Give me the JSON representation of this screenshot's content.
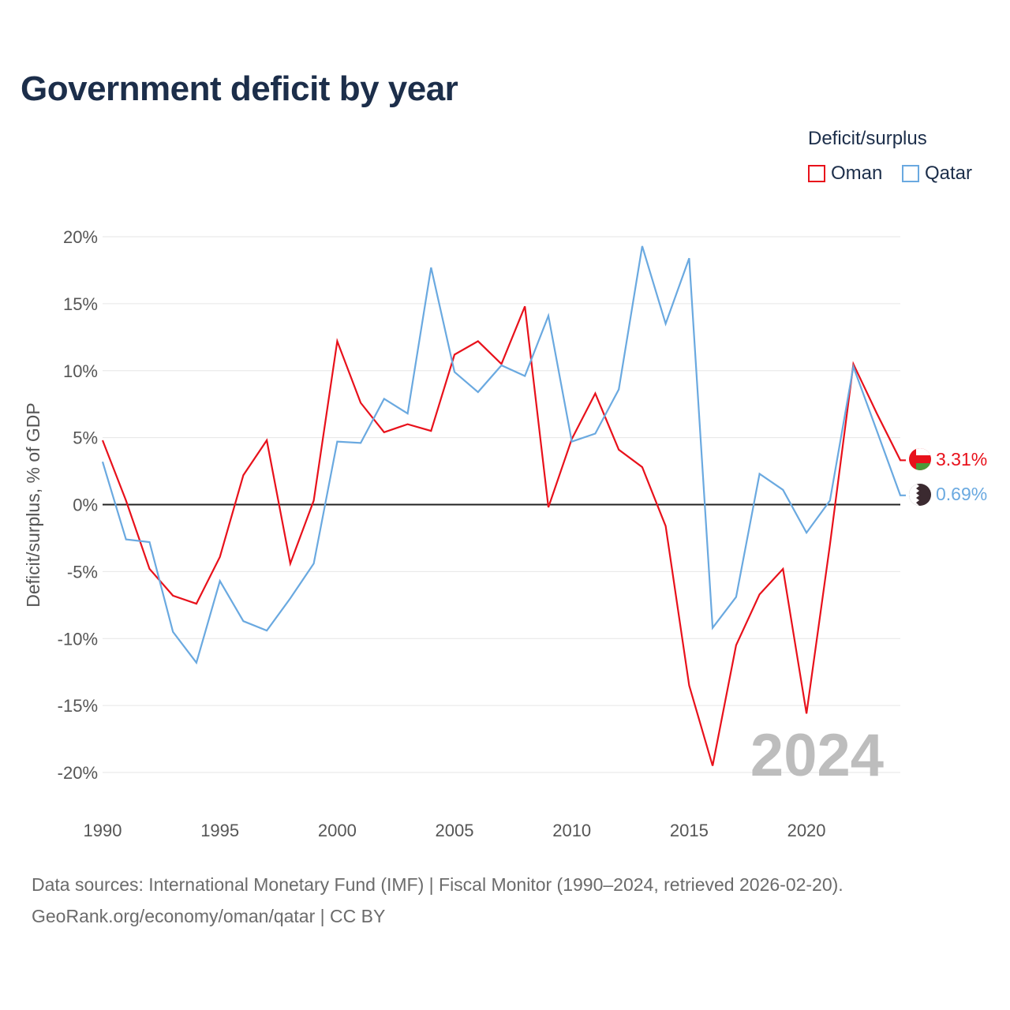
{
  "title": "Government deficit by year",
  "legend": {
    "title": "Deficit/surplus",
    "items": [
      {
        "label": "Oman",
        "color": "#e8111b"
      },
      {
        "label": "Qatar",
        "color": "#6aa9e0"
      }
    ]
  },
  "footer": {
    "line1": "Data sources: International Monetary Fund (IMF) | Fiscal Monitor (1990–2024, retrieved 2026-02-20).",
    "line2": "GeoRank.org/economy/oman/qatar | CC BY"
  },
  "chart_data": {
    "type": "line",
    "title": "Government deficit by year",
    "xlabel": "",
    "ylabel": "Deficit/surplus, % of GDP",
    "xlim": [
      1990,
      2024
    ],
    "ylim": [
      -20,
      20
    ],
    "x_ticks": [
      "1990",
      "1995",
      "2000",
      "2005",
      "2010",
      "2015",
      "2020"
    ],
    "x_tick_values": [
      1990,
      1995,
      2000,
      2005,
      2010,
      2015,
      2020
    ],
    "y_ticks": [
      "20%",
      "15%",
      "10%",
      "5%",
      "0%",
      "-5%",
      "-10%",
      "-15%",
      "-20%"
    ],
    "y_tick_values": [
      20,
      15,
      10,
      5,
      0,
      -5,
      -10,
      -15,
      -20
    ],
    "grid": true,
    "legend_position": "top-right",
    "year_label": "2024",
    "x": [
      1990,
      1991,
      1992,
      1993,
      1994,
      1995,
      1996,
      1997,
      1998,
      1999,
      2000,
      2001,
      2002,
      2003,
      2004,
      2005,
      2006,
      2007,
      2008,
      2009,
      2010,
      2011,
      2012,
      2013,
      2014,
      2015,
      2016,
      2017,
      2018,
      2019,
      2020,
      2021,
      2022,
      2023,
      2024
    ],
    "series": [
      {
        "name": "Oman",
        "color": "#e8111b",
        "end_label": "3.31%",
        "values": [
          4.8,
          0.3,
          -4.8,
          -6.8,
          -7.4,
          -3.9,
          2.2,
          4.8,
          -4.4,
          0.3,
          12.2,
          7.6,
          5.4,
          6.0,
          5.5,
          11.2,
          12.2,
          10.5,
          14.8,
          -0.2,
          4.9,
          8.3,
          4.1,
          2.8,
          -1.6,
          -13.5,
          -19.5,
          -10.5,
          -6.7,
          -4.8,
          -15.6,
          -3.0,
          10.5,
          6.8,
          3.31
        ]
      },
      {
        "name": "Qatar",
        "color": "#6aa9e0",
        "end_label": "0.69%",
        "values": [
          3.2,
          -2.6,
          -2.8,
          -9.5,
          -11.8,
          -5.7,
          -8.7,
          -9.4,
          -7.0,
          -4.4,
          4.7,
          4.6,
          7.9,
          6.8,
          17.7,
          9.9,
          8.4,
          10.4,
          9.6,
          14.1,
          4.7,
          5.3,
          8.6,
          19.3,
          13.5,
          18.4,
          -9.2,
          -6.9,
          2.3,
          1.1,
          -2.1,
          0.3,
          10.3,
          5.5,
          0.69
        ]
      }
    ]
  }
}
